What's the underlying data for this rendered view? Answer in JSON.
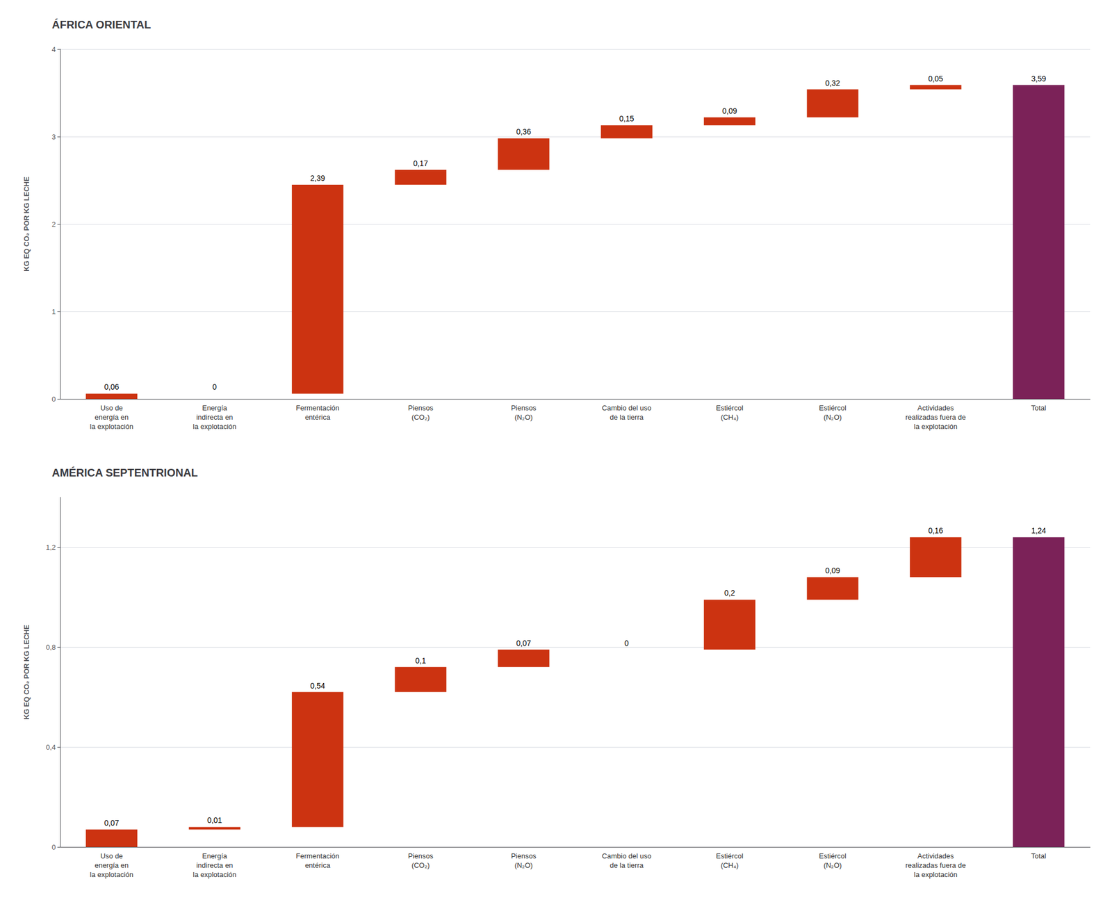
{
  "chart_data": [
    {
      "type": "waterfall",
      "title": "ÁFRICA ORIENTAL",
      "categories": [
        "Uso de\nenergía en\nla explotación",
        "Energía\nindirecta en\nla explotación",
        "Fermentación\nentérica",
        "Piensos\n(CO₂)",
        "Piensos\n(N₂O)",
        "Cambio del uso\nde la tierra",
        "Estiércol\n(CH₄)",
        "Estiércol\n(N₂O)",
        "Actividades\nrealizadas fuera de\nla explotación",
        "Total"
      ],
      "values": [
        0.06,
        0.0,
        2.39,
        0.17,
        0.36,
        0.15,
        0.09,
        0.32,
        0.05,
        3.59
      ],
      "value_labels": [
        "0,06",
        "0",
        "2,39",
        "0,17",
        "0,36",
        "0,15",
        "0,09",
        "0,32",
        "0,05",
        "3,59"
      ],
      "colors": [
        "#cc3311",
        "#cc3311",
        "#cc3311",
        "#cc3311",
        "#cc3311",
        "#cc3311",
        "#cc3311",
        "#cc3311",
        "#cc3311",
        "#7b2258"
      ],
      "ylim": [
        0,
        4.0
      ],
      "yticks": [
        0,
        1,
        2,
        3,
        4
      ],
      "ylabel": "KG EQ CO₂ POR KG LECHE",
      "grid": true,
      "data_labels": true
    },
    {
      "type": "waterfall",
      "title": "AMÉRICA SEPTENTRIONAL",
      "categories": [
        "Uso de\nenergía en\nla explotación",
        "Energía\nindirecta en\nla explotación",
        "Fermentación\nentérica",
        "Piensos\n(CO₂)",
        "Piensos\n(N₂O)",
        "Cambio del uso\nde la tierra",
        "Estiércol\n(CH₄)",
        "Estiércol\n(N₂O)",
        "Actividades\nrealizadas fuera de\nla explotación",
        "Total"
      ],
      "values": [
        0.07,
        0.01,
        0.54,
        0.1,
        0.07,
        0.0,
        0.2,
        0.09,
        0.16,
        1.24
      ],
      "value_labels": [
        "0,07",
        "0,01",
        "0,54",
        "0,1",
        "0,07",
        "0",
        "0,2",
        "0,09",
        "0,16",
        "1,24"
      ],
      "colors": [
        "#cc3311",
        "#cc3311",
        "#cc3311",
        "#cc3311",
        "#cc3311",
        "#cc3311",
        "#cc3311",
        "#cc3311",
        "#cc3311",
        "#7b2258"
      ],
      "ylim": [
        0,
        1.4
      ],
      "yticks": [
        0,
        {
          "value": 0.4,
          "label": "0,4"
        },
        {
          "value": 0.8,
          "label": "0,8"
        },
        {
          "value": 1.2,
          "label": "1,2"
        }
      ],
      "ylabel": "KG EQ CO₂ POR KG LECHE",
      "grid": true,
      "data_labels": true
    }
  ]
}
